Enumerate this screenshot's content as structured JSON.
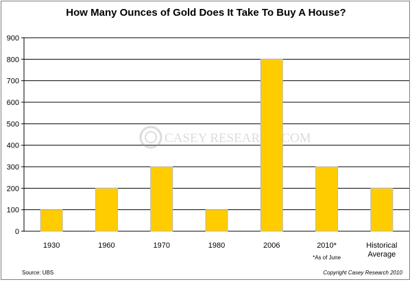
{
  "chart_data": {
    "type": "bar",
    "title": "How Many Ounces of Gold Does It Take To Buy A House?",
    "categories": [
      "1930",
      "1960",
      "1970",
      "1980",
      "2006",
      "2010*",
      "Historical Average"
    ],
    "category_lines": [
      [
        "1930"
      ],
      [
        "1960"
      ],
      [
        "1970"
      ],
      [
        "1980"
      ],
      [
        "2006"
      ],
      [
        "2010*"
      ],
      [
        "Historical",
        "Average"
      ]
    ],
    "values": [
      100,
      200,
      300,
      100,
      800,
      300,
      200
    ],
    "ylim": [
      0,
      900
    ],
    "yticks": [
      0,
      100,
      200,
      300,
      400,
      500,
      600,
      700,
      800,
      900
    ],
    "grid": true,
    "bar_color": "#FFCC00",
    "category_note": {
      "category": "2010*",
      "text": "*As of June"
    }
  },
  "watermark": {
    "text": "CASEY RESEARCH.COM",
    "logo_icon": "casey-research-logo"
  },
  "footer": {
    "source": "Source: UBS",
    "copyright": "Copyright  Casey Research  2010"
  }
}
